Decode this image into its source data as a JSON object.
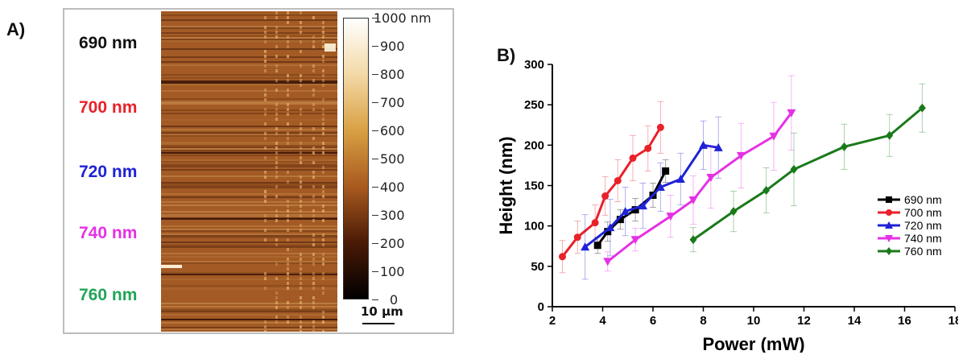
{
  "panel_a": {
    "letter": "A)",
    "wavelength_labels": [
      {
        "text": "690 nm",
        "color": "#111111"
      },
      {
        "text": "700 nm",
        "color": "#e8212a"
      },
      {
        "text": "720 nm",
        "color": "#1f22d6"
      },
      {
        "text": "740 nm",
        "color": "#e531e5"
      },
      {
        "text": "760 nm",
        "color": "#22a45a"
      }
    ],
    "colorbar": {
      "labels": [
        "1000 nm",
        "900",
        "800",
        "700",
        "600",
        "500",
        "400",
        "300",
        "200",
        "100",
        "0"
      ],
      "colors": [
        "#ffffff",
        "#f3d9a6",
        "#d9a043",
        "#a85a1e",
        "#4a1a06",
        "#000000"
      ]
    },
    "scale_bar": "10 μm",
    "afm_colors": {
      "base": "#a35a24",
      "light": "#e2b26a",
      "dark": "#3a1408"
    }
  },
  "panel_b": {
    "letter": "B)"
  },
  "chart_data": {
    "type": "line",
    "title": "",
    "xlabel": "Power (mW)",
    "ylabel": "Height (nm)",
    "xlim": [
      2,
      18
    ],
    "ylim": [
      0,
      300
    ],
    "xticks": [
      2,
      4,
      6,
      8,
      10,
      12,
      14,
      16,
      18
    ],
    "yticks": [
      0,
      50,
      100,
      150,
      200,
      250,
      300
    ],
    "legend_position": "right",
    "series": [
      {
        "name": "690 nm",
        "color": "#000000",
        "marker": "square",
        "x": [
          3.8,
          4.2,
          4.7,
          5.3,
          6.0,
          6.5
        ],
        "y": [
          76,
          93,
          108,
          120,
          138,
          168
        ],
        "err": [
          10,
          12,
          12,
          14,
          15,
          14
        ]
      },
      {
        "name": "700 nm",
        "color": "#e8212a",
        "marker": "circle",
        "x": [
          2.4,
          3.0,
          3.7,
          4.1,
          4.6,
          5.2,
          5.8,
          6.3
        ],
        "y": [
          62,
          86,
          104,
          137,
          156,
          184,
          196,
          222
        ],
        "err": [
          20,
          20,
          22,
          24,
          26,
          28,
          28,
          32
        ]
      },
      {
        "name": "720 nm",
        "color": "#1f22d6",
        "marker": "triangle-up",
        "x": [
          3.3,
          4.3,
          4.9,
          5.6,
          6.3,
          7.1,
          8.0,
          8.6
        ],
        "y": [
          74,
          98,
          118,
          125,
          148,
          158,
          200,
          197
        ],
        "err": [
          40,
          35,
          30,
          28,
          30,
          32,
          30,
          38
        ]
      },
      {
        "name": "740 nm",
        "color": "#e531e5",
        "marker": "triangle-down",
        "x": [
          4.2,
          5.3,
          6.7,
          7.6,
          8.3,
          9.5,
          10.8,
          11.5
        ],
        "y": [
          56,
          83,
          112,
          132,
          160,
          187,
          211,
          240
        ],
        "err": [
          12,
          14,
          26,
          30,
          38,
          40,
          42,
          46
        ]
      },
      {
        "name": "760 nm",
        "color": "#1a7a1a",
        "marker": "diamond",
        "x": [
          7.6,
          9.2,
          10.5,
          11.6,
          13.6,
          15.4,
          16.7
        ],
        "y": [
          83,
          118,
          144,
          170,
          198,
          212,
          246
        ],
        "err": [
          15,
          25,
          28,
          45,
          28,
          26,
          30
        ]
      }
    ]
  }
}
